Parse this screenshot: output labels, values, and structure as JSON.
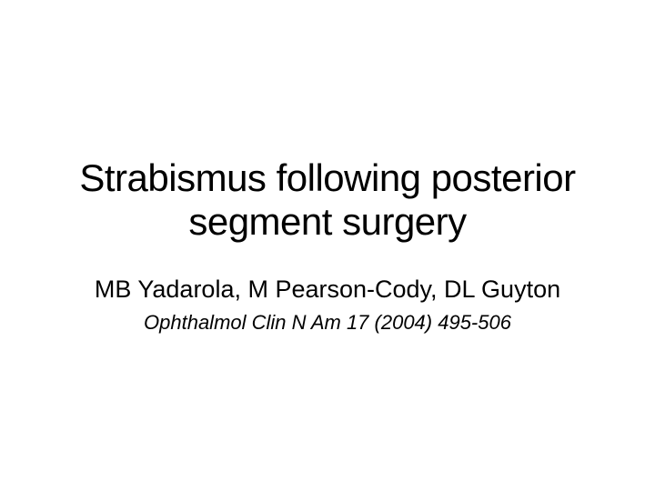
{
  "slide": {
    "title": "Strabismus following posterior segment surgery",
    "authors": "MB Yadarola, M Pearson-Cody, DL Guyton",
    "citation": "Ophthalmol Clin N Am 17 (2004) 495-506",
    "background_color": "#ffffff",
    "text_color": "#000000",
    "title_fontsize": 42,
    "authors_fontsize": 27,
    "citation_fontsize": 22,
    "font_family": "Arial"
  }
}
